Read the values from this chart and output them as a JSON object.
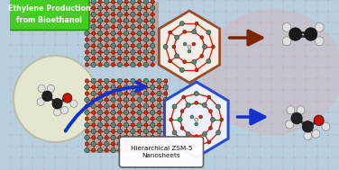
{
  "bg_color": "#b8cfe0",
  "green_label": "Ethylene Production\nfrom Bioethanol",
  "green_box_color": "#44cc22",
  "bottom_label": "Hierarchical ZSM-5\nNanosheets",
  "arrow_color_top": "#7B2500",
  "arrow_color_bottom": "#1133cc",
  "fig_width": 3.76,
  "fig_height": 1.89,
  "dpi": 100,
  "pink_circle_color": "#ddaaaa",
  "pink_circle_alpha": 0.35,
  "ethanol_circle_color": "#e8e8d0",
  "ethanol_circle_alpha": 0.95,
  "zeolite_red": "#dd2200",
  "zeolite_teal": "#558877",
  "hex_brown_edge": "#994422",
  "hex_blue_edge": "#2244cc"
}
